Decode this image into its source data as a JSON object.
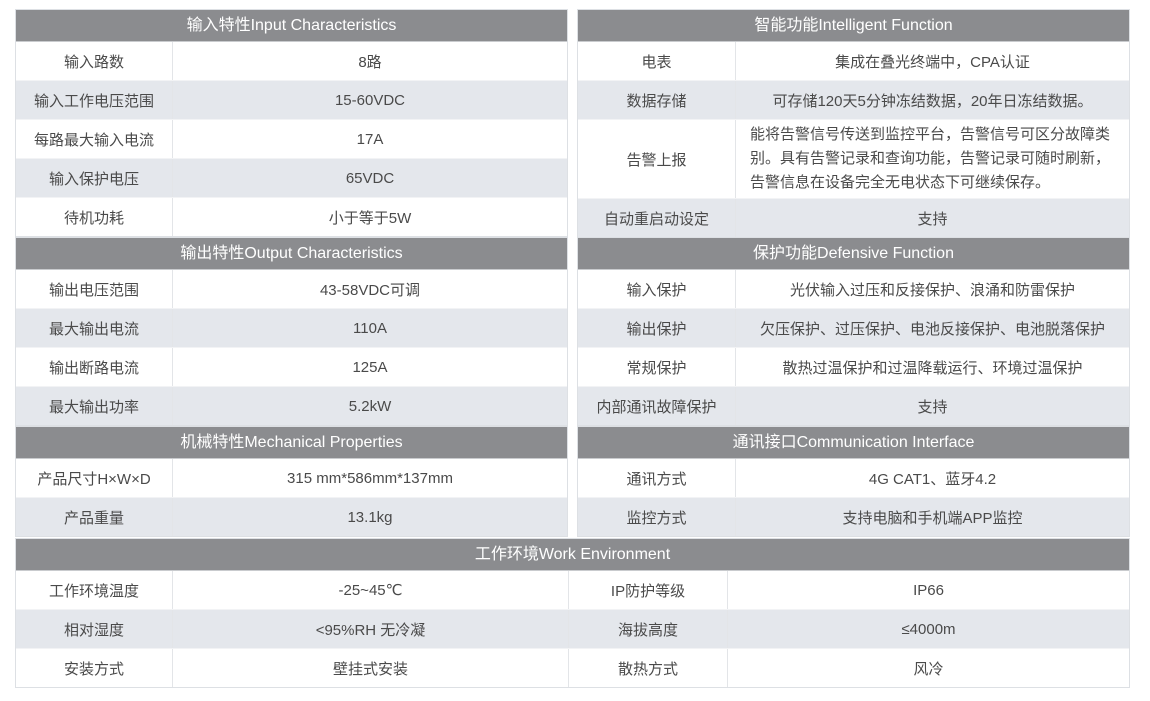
{
  "colors": {
    "header_bg": "#8b8c8f",
    "alt_row_bg": "#e4e7ec",
    "text": "#4a4a4a"
  },
  "sections": [
    {
      "title": "输入特性Input Characteristics",
      "rows": [
        {
          "label": "输入路数",
          "value": "8路"
        },
        {
          "label": "输入工作电压范围",
          "value": "15-60VDC"
        },
        {
          "label": "每路最大输入电流",
          "value": "17A"
        },
        {
          "label": "输入保护电压",
          "value": "65VDC"
        },
        {
          "label": "待机功耗",
          "value": "小于等于5W"
        }
      ]
    },
    {
      "title": "智能功能Intelligent Function",
      "rows": [
        {
          "label": "电表",
          "value": "集成在叠光终端中，CPA认证"
        },
        {
          "label": "数据存储",
          "value": "可存储120天5分钟冻结数据，20年日冻结数据。"
        },
        {
          "label": "告警上报",
          "value": "能将告警信号传送到监控平台，告警信号可区分故障类别。具有告警记录和查询功能，告警记录可随时刷新，告警信息在设备完全无电状态下可继续保存。"
        },
        {
          "label": "自动重启动设定",
          "value": "支持"
        }
      ]
    },
    {
      "title": "输出特性Output Characteristics",
      "rows": [
        {
          "label": "输出电压范围",
          "value": "43-58VDC可调"
        },
        {
          "label": "最大输出电流",
          "value": "110A"
        },
        {
          "label": "输出断路电流",
          "value": "125A"
        },
        {
          "label": "最大输出功率",
          "value": "5.2kW"
        }
      ]
    },
    {
      "title": "保护功能Defensive Function",
      "rows": [
        {
          "label": "输入保护",
          "value": "光伏输入过压和反接保护、浪涌和防雷保护"
        },
        {
          "label": "输出保护",
          "value": "欠压保护、过压保护、电池反接保护、电池脱落保护"
        },
        {
          "label": "常规保护",
          "value": "散热过温保护和过温降载运行、环境过温保护"
        },
        {
          "label": "内部通讯故障保护",
          "value": "支持"
        }
      ]
    },
    {
      "title": "机械特性Mechanical Properties",
      "rows": [
        {
          "label": "产品尺寸H×W×D",
          "value": "315 mm*586mm*137mm"
        },
        {
          "label": "产品重量",
          "value": "13.1kg"
        }
      ]
    },
    {
      "title": "通讯接口Communication Interface",
      "rows": [
        {
          "label": "通讯方式",
          "value": "4G CAT1、蓝牙4.2"
        },
        {
          "label": "监控方式",
          "value": "支持电脑和手机端APP监控"
        }
      ]
    }
  ],
  "environment": {
    "title": "工作环境Work Environment",
    "rows": [
      {
        "label": "工作环境温度",
        "value": "-25~45℃",
        "label2": "IP防护等级",
        "value2": "IP66"
      },
      {
        "label": "相对湿度",
        "value": "<95%RH 无冷凝",
        "label2": "海拔高度",
        "value2": "≤4000m"
      },
      {
        "label": "安装方式",
        "value": "壁挂式安装",
        "label2": "散热方式",
        "value2": "风冷"
      }
    ]
  }
}
